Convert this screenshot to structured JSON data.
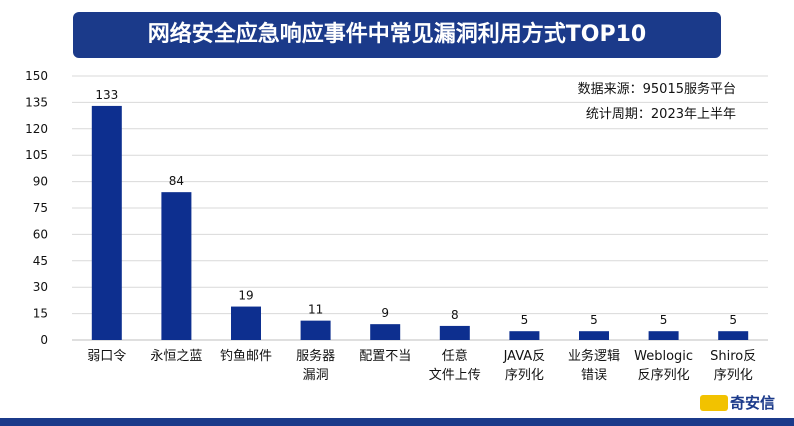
{
  "chart_data": {
    "type": "bar",
    "title": "网络安全应急响应事件中常见漏洞利用方式TOP10",
    "categories": [
      [
        "弱口令"
      ],
      [
        "永恒之蓝"
      ],
      [
        "钓鱼邮件"
      ],
      [
        "服务器",
        "漏洞"
      ],
      [
        "配置不当"
      ],
      [
        "任意",
        "文件上传"
      ],
      [
        "JAVA反",
        "序列化"
      ],
      [
        "业务逻辑",
        "错误"
      ],
      [
        "Weblogic",
        "反序列化"
      ],
      [
        "Shiro反",
        "序列化"
      ]
    ],
    "values": [
      133,
      84,
      19,
      11,
      9,
      8,
      5,
      5,
      5,
      5
    ],
    "ylim": [
      0,
      150
    ],
    "yticks": [
      0,
      15,
      30,
      45,
      60,
      75,
      90,
      105,
      120,
      135,
      150
    ],
    "grid": true,
    "bar_color": "#0d2f8f",
    "xlabel": "",
    "ylabel": ""
  },
  "notes": {
    "source": "数据来源：95015服务平台",
    "period": "统计周期：2023年上半年"
  },
  "logo": {
    "text": "奇安信"
  },
  "colors": {
    "title_bg": "#1b3a8a",
    "bottom_band": "#1b3a8a"
  }
}
